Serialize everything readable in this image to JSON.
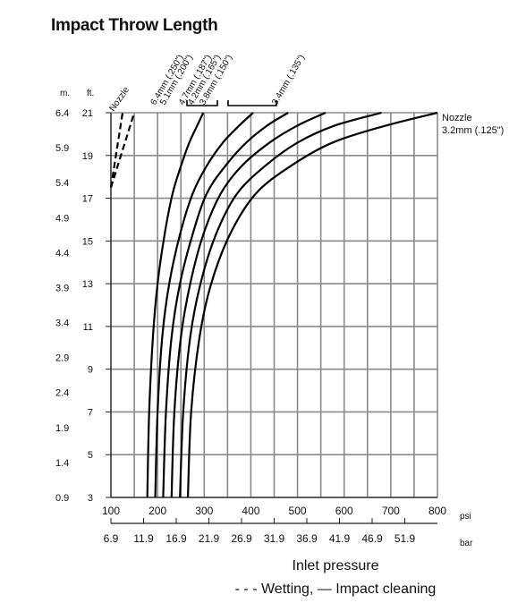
{
  "title": "Impact Throw Length",
  "chart_data": {
    "type": "line",
    "title": "Impact Throw Length",
    "xlabel": "Inlet pressure",
    "x_unit_primary": "psi",
    "x_unit_secondary": "bar",
    "y_unit_left": "m.",
    "y_unit_right": "ft.",
    "xlim": [
      100,
      800
    ],
    "ylim": [
      3,
      21
    ],
    "grid": true,
    "x_ticks_psi": [
      "100",
      "200",
      "300",
      "400",
      "500",
      "600",
      "700",
      "800"
    ],
    "x_ticks_bar": [
      "6.9",
      "11.9",
      "16.9",
      "21.9",
      "26.9",
      "31.9",
      "36.9",
      "41.9",
      "46.9",
      "51.9"
    ],
    "y_ticks_ft": [
      "3",
      "5",
      "7",
      "9",
      "11",
      "13",
      "15",
      "17",
      "19",
      "21"
    ],
    "y_ticks_m": [
      "0.9",
      "1.4",
      "1.9",
      "2.4",
      "2.9",
      "3.4",
      "3.9",
      "4.4",
      "4.9",
      "5.4",
      "5.9",
      "6.4"
    ],
    "legend": "- - - Wetting, — Impact cleaning",
    "wetting_label": "Nozzle",
    "series": [
      {
        "name": "6.4mm (.250\")",
        "style": "solid",
        "x": [
          178,
          182,
          190,
          200,
          215,
          232,
          250,
          268,
          285,
          298
        ],
        "y": [
          3,
          7,
          10.5,
          13,
          15.3,
          17.2,
          18.5,
          19.6,
          20.4,
          21
        ]
      },
      {
        "name": "5.1mm (.200\")",
        "style": "solid",
        "x": [
          195,
          200,
          210,
          225,
          248,
          275,
          305,
          340,
          375,
          405
        ],
        "y": [
          3,
          7,
          10.5,
          13,
          15.3,
          17.2,
          18.5,
          19.6,
          20.4,
          21
        ]
      },
      {
        "name": "4.7mm (.187\")",
        "style": "solid",
        "x": [
          212,
          218,
          230,
          248,
          275,
          305,
          345,
          390,
          435,
          480
        ],
        "y": [
          3,
          7,
          10.5,
          13,
          15.3,
          17.2,
          18.5,
          19.6,
          20.4,
          21
        ]
      },
      {
        "name": "3.8mm (.150\")",
        "style": "solid",
        "x": [
          230,
          236,
          250,
          270,
          298,
          335,
          380,
          440,
          500,
          560
        ],
        "y": [
          3,
          7,
          10.5,
          13,
          15.3,
          17.2,
          18.5,
          19.6,
          20.4,
          21
        ]
      },
      {
        "name": "3.4mm (.135\")",
        "style": "solid",
        "x": [
          248,
          255,
          270,
          292,
          325,
          370,
          430,
          500,
          580,
          680
        ],
        "y": [
          3,
          7,
          10.5,
          13,
          15.3,
          17.2,
          18.5,
          19.6,
          20.4,
          21
        ]
      },
      {
        "name": "Nozzle 3.2mm (.125\")",
        "style": "solid",
        "x": [
          265,
          272,
          290,
          315,
          355,
          410,
          485,
          575,
          690,
          800
        ],
        "y": [
          3,
          7,
          10.5,
          13,
          15.3,
          17.2,
          18.5,
          19.6,
          20.4,
          21
        ]
      }
    ],
    "wetting_series": [
      {
        "style": "dashed",
        "x": [
          100,
          125
        ],
        "y": [
          17.5,
          21
        ]
      },
      {
        "style": "dashed",
        "x": [
          100,
          150
        ],
        "y": [
          17.5,
          21
        ]
      }
    ],
    "series_labels_top": [
      {
        "text": "6.4mm (.250\")",
        "x": 195
      },
      {
        "text": "5.1mm (.200\")",
        "x": 215
      },
      {
        "text": "4.7mm (.187\")",
        "x": 255
      },
      {
        "text": "4.2mm (.165\")",
        "x": 275
      },
      {
        "text": "3.8mm (.150\")",
        "x": 300
      },
      {
        "text": "3.4mm (.135\")",
        "x": 455
      }
    ],
    "right_label": [
      "Nozzle",
      "3.2mm  (.125\")"
    ]
  }
}
